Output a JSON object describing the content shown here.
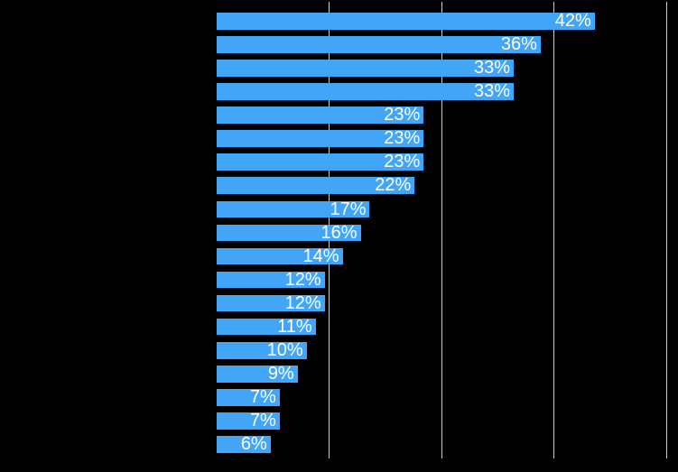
{
  "colors": {
    "background": "#000000",
    "bar": "#42a5f5",
    "bar_label": "#ffffff",
    "gridline": "#cccccc"
  },
  "chart_data": {
    "type": "bar",
    "orientation": "horizontal",
    "values": [
      42,
      36,
      33,
      33,
      23,
      23,
      23,
      22,
      17,
      16,
      14,
      12,
      12,
      11,
      10,
      9,
      7,
      7,
      6
    ],
    "labels": [
      "42%",
      "36%",
      "33%",
      "33%",
      "23%",
      "23%",
      "23%",
      "22%",
      "17%",
      "16%",
      "14%",
      "12%",
      "12%",
      "11%",
      "10%",
      "9%",
      "7%",
      "7%",
      "6%"
    ],
    "value_label_position": "inside-end",
    "xlim": [
      0,
      50
    ],
    "xticks": [
      12.5,
      25,
      37.5,
      50
    ],
    "xtick_labels_visible": false,
    "category_labels_visible": false,
    "grid": true,
    "grid_axis": "x",
    "legend": "none",
    "title": "",
    "xlabel": "",
    "ylabel": ""
  }
}
